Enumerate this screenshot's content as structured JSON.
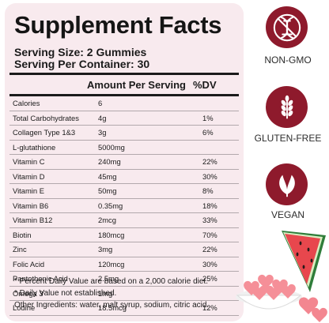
{
  "facts": {
    "title": "Supplement Facts",
    "serving_size": "Serving Size: 2 Gummies",
    "servings_per_container": "Serving Per Container: 30",
    "col_amount": "Amount Per Serving",
    "col_dv": "%DV",
    "rows": [
      {
        "name": "Calories",
        "amount": "6",
        "dv": ""
      },
      {
        "name": "Total Carbohydrates",
        "amount": "4g",
        "dv": "1%"
      },
      {
        "name": "Collagen Type 1&3",
        "amount": "3g",
        "dv": "6%"
      },
      {
        "name": "L-glutathione",
        "amount": "5000mg",
        "dv": ""
      },
      {
        "name": "Vitamin C",
        "amount": "240mg",
        "dv": "22%"
      },
      {
        "name": "Vitamin D",
        "amount": "45mg",
        "dv": "30%"
      },
      {
        "name": "Vitamin E",
        "amount": "50mg",
        "dv": "8%"
      },
      {
        "name": "Vitamin B6",
        "amount": "0.35mg",
        "dv": "18%"
      },
      {
        "name": "Vitamin B12",
        "amount": "2mcg",
        "dv": "33%"
      },
      {
        "name": "Biotin",
        "amount": "180mcg",
        "dv": "70%"
      },
      {
        "name": "Zinc",
        "amount": "3mg",
        "dv": "22%"
      },
      {
        "name": "Folic Acid",
        "amount": "120mcg",
        "dv": "30%"
      },
      {
        "name": "Pantothenic Acid",
        "amount": "2.5mg",
        "dv": "25%"
      },
      {
        "name": "Omega 3",
        "amount": "1mg",
        "dv": ""
      },
      {
        "name": "Lodine",
        "amount": "18.5mcg",
        "dv": "12%"
      }
    ],
    "footnotes": [
      "* Percent Daily Value are based on a 2,000 calorie diet.",
      "* Daily Value not established.",
      "Other Ingredients: water, malt syrup, sodium, citric acid."
    ]
  },
  "badges": [
    {
      "label": "NON-GMO",
      "icon": "dna-crossed-icon"
    },
    {
      "label": "GLUTEN-FREE",
      "icon": "wheat-icon"
    },
    {
      "label": "VEGAN",
      "icon": "leaf-icon"
    }
  ],
  "colors": {
    "panel": "#f8eaee",
    "badge": "#8e1a2c",
    "gummy": "#f58f98",
    "watermelon": "#e8474d"
  }
}
